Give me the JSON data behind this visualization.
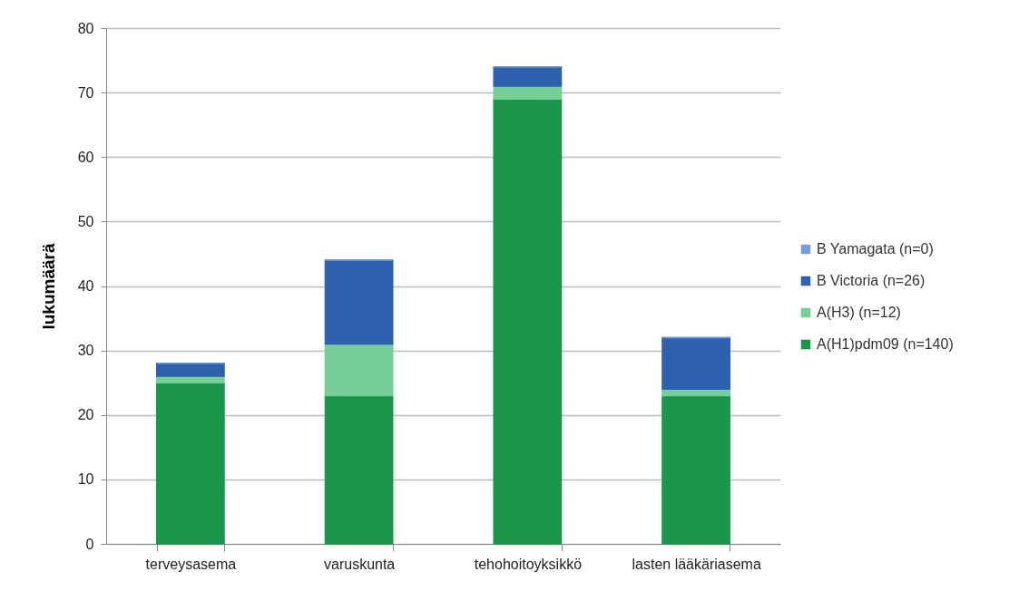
{
  "chart_data": {
    "type": "bar",
    "stacked": true,
    "ylabel": "lukumäärä",
    "categories": [
      "terveysasema",
      "varuskunta",
      "tehohoitoyksikkö",
      "lasten lääkäriasema"
    ],
    "series": [
      {
        "name": "A(H1)pdm09 (n=140)",
        "color": "#1a974b",
        "values": [
          25,
          23,
          69,
          23
        ]
      },
      {
        "name": "A(H3) (n=12)",
        "color": "#76cf96",
        "values": [
          1,
          8,
          2,
          1
        ]
      },
      {
        "name": "B Victoria (n=26)",
        "color": "#2e62ae",
        "values": [
          2,
          13,
          3,
          8
        ]
      },
      {
        "name": "B Yamagata (n=0)",
        "color": "#6f9de0",
        "values": [
          0,
          0,
          0,
          0
        ]
      }
    ],
    "ylim": [
      0,
      80
    ],
    "yticks": [
      0,
      10,
      20,
      30,
      40,
      50,
      60,
      70,
      80
    ],
    "grid": "y",
    "legend": "right"
  }
}
